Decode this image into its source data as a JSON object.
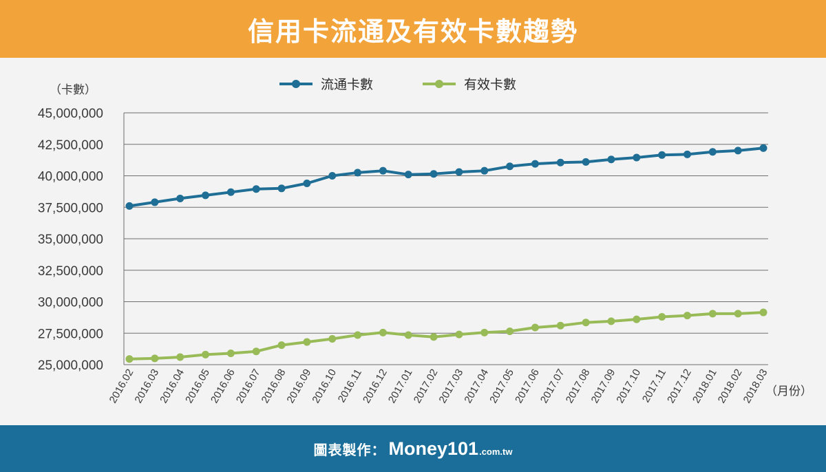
{
  "header": {
    "title": "信用卡流通及有效卡數趨勢"
  },
  "footer": {
    "credit": "圖表製作：",
    "brand": "Money101",
    "brand_suffix": ".com.tw"
  },
  "colors": {
    "header_bg": "#f2a43a",
    "footer_bg": "#1a6e99",
    "series_blue": "#1f6e96",
    "series_green": "#98bb57"
  },
  "chart_data": {
    "type": "line",
    "title": "",
    "ylabel": "（卡數）",
    "xlabel": "（月份）",
    "ylim": [
      25000000,
      45000000
    ],
    "yticks": [
      {
        "value": 25000000,
        "label": "25,000,000"
      },
      {
        "value": 27500000,
        "label": "27,500,000"
      },
      {
        "value": 30000000,
        "label": "30,000,000"
      },
      {
        "value": 32500000,
        "label": "32,500,000"
      },
      {
        "value": 35000000,
        "label": "35,000,000"
      },
      {
        "value": 37500000,
        "label": "37,500,000"
      },
      {
        "value": 40000000,
        "label": "40,000,000"
      },
      {
        "value": 42500000,
        "label": "42,500,000"
      },
      {
        "value": 45000000,
        "label": "45,000,000"
      }
    ],
    "grid": true,
    "legend_position": "top-center",
    "categories": [
      "2016.02",
      "2016.03",
      "2016.04",
      "2016.05",
      "2016.06",
      "2016.07",
      "2016.08",
      "2016.09",
      "2016.10",
      "2016.11",
      "2016.12",
      "2017.01",
      "2017.02",
      "2017.03",
      "2017.04",
      "2017.05",
      "2017.06",
      "2017.07",
      "2017.08",
      "2017.09",
      "2017.10",
      "2017.11",
      "2017.12",
      "2018.01",
      "2018.02",
      "2018.03"
    ],
    "series": [
      {
        "name": "流通卡數",
        "color": "#1f6e96",
        "values": [
          37600000,
          37900000,
          38200000,
          38450000,
          38700000,
          38950000,
          39000000,
          39400000,
          40000000,
          40250000,
          40400000,
          40100000,
          40150000,
          40300000,
          40400000,
          40750000,
          40950000,
          41050000,
          41100000,
          41300000,
          41450000,
          41650000,
          41700000,
          41900000,
          42000000,
          42200000
        ]
      },
      {
        "name": "有效卡數",
        "color": "#98bb57",
        "values": [
          25450000,
          25500000,
          25600000,
          25800000,
          25900000,
          26050000,
          26550000,
          26800000,
          27050000,
          27350000,
          27550000,
          27350000,
          27200000,
          27400000,
          27550000,
          27650000,
          27950000,
          28100000,
          28350000,
          28450000,
          28600000,
          28800000,
          28900000,
          29050000,
          29050000,
          29150000
        ]
      }
    ]
  }
}
